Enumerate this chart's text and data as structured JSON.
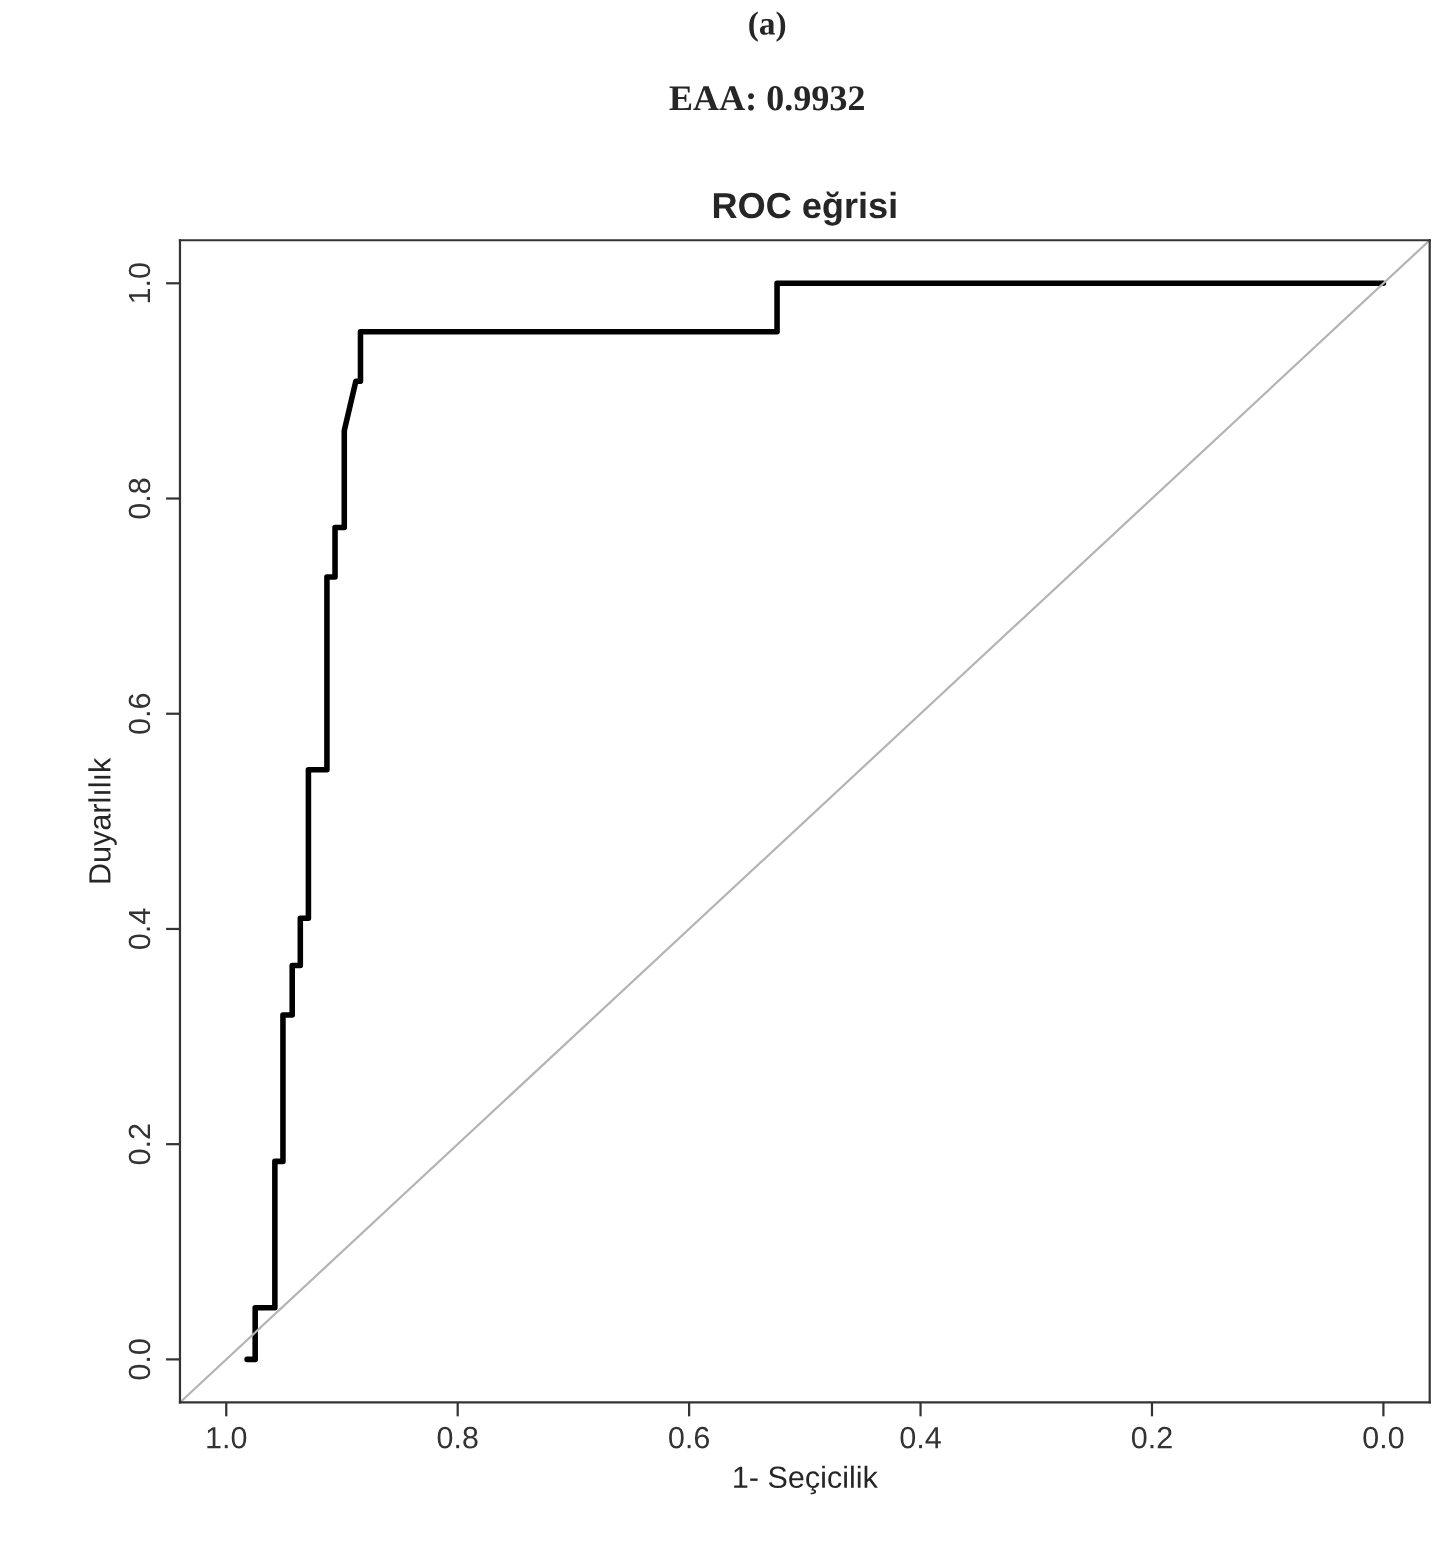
{
  "chart_data": {
    "type": "line",
    "title": "ROC eğrisi",
    "annotations": [
      "(a)",
      "EAA: 0.9932"
    ],
    "xlabel": "1- Seçicilik",
    "ylabel": "Duyarlılık",
    "xlim": [
      1.04,
      -0.04
    ],
    "xticks": [
      {
        "value": 1,
        "label": "1.0"
      },
      0.8,
      0.6,
      0.4,
      0.2,
      {
        "value": 0,
        "label": "0.0"
      }
    ],
    "ylim": [
      -0.04,
      1.04
    ],
    "yticks": [
      {
        "value": 0,
        "label": "0.0"
      },
      0.2,
      0.4,
      0.6,
      0.8,
      {
        "value": 1,
        "label": "1.0"
      }
    ],
    "grid": false,
    "legend": false,
    "marker": "none",
    "line_style": "solid",
    "series": [
      {
        "color": "#000000",
        "x": [
          0.982,
          0.975,
          0.975,
          0.958,
          0.958,
          0.951,
          0.951,
          0.943,
          0.943,
          0.936,
          0.936,
          0.929,
          0.929,
          0.913,
          0.913,
          0.906,
          0.906,
          0.898,
          0.898,
          0.893,
          0.888,
          0.884,
          0.884,
          0.524,
          0.524,
          0.0
        ],
        "values": [
          0.0,
          0.0,
          0.048,
          0.048,
          0.184,
          0.184,
          0.32,
          0.32,
          0.366,
          0.366,
          0.41,
          0.41,
          0.548,
          0.548,
          0.727,
          0.727,
          0.773,
          0.773,
          0.863,
          0.886,
          0.909,
          0.909,
          0.955,
          0.955,
          1.0,
          1.0
        ]
      },
      {
        "color": "#b4b4b4",
        "x": [
          1.04,
          -0.04
        ],
        "values": [
          -0.04,
          1.04
        ]
      }
    ]
  }
}
